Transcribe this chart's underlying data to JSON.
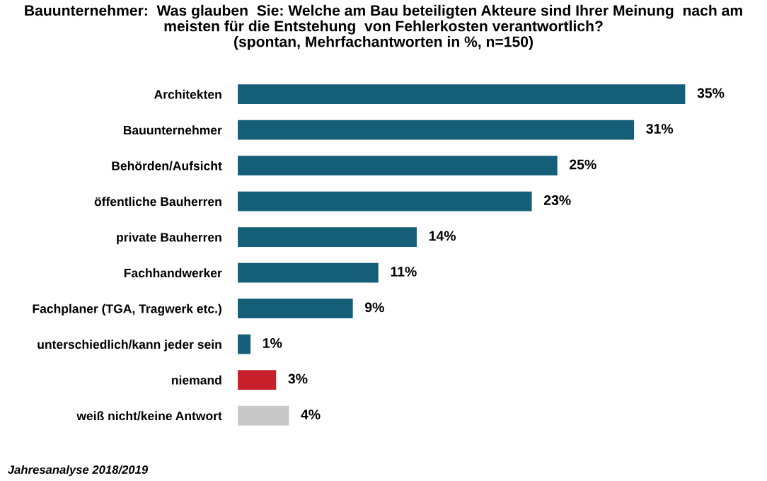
{
  "chart_data": {
    "type": "bar",
    "orientation": "horizontal",
    "title": "Bauunternehmer:  Was glauben  Sie: Welche am Bau beteiligten Akteure sind Ihrer Meinung  nach am\nmeisten für die Entstehung  von Fehlerkosten verantwortlich?\n(spontan, Mehrfachantworten in %, n=150)",
    "categories": [
      "Architekten",
      "Bauunternehmer",
      "Behörden/Aufsicht",
      "öffentliche Bauherren",
      "private Bauherren",
      "Fachhandwerker",
      "Fachplaner (TGA, Tragwerk etc.)",
      "unterschiedlich/kann jeder sein",
      "niemand",
      "weiß nicht/keine Antwort"
    ],
    "values": [
      35,
      31,
      25,
      23,
      14,
      11,
      9,
      1,
      3,
      4
    ],
    "colors": [
      "#155e78",
      "#155e78",
      "#155e78",
      "#155e78",
      "#155e78",
      "#155e78",
      "#155e78",
      "#155e78",
      "#c8202a",
      "#c8c8c8"
    ],
    "value_labels": [
      "35%",
      "31%",
      "25%",
      "23%",
      "14%",
      "11%",
      "9%",
      "1%",
      "3%",
      "4%"
    ],
    "annotations": [
      "Jahresanalyse 2018/2019"
    ]
  }
}
